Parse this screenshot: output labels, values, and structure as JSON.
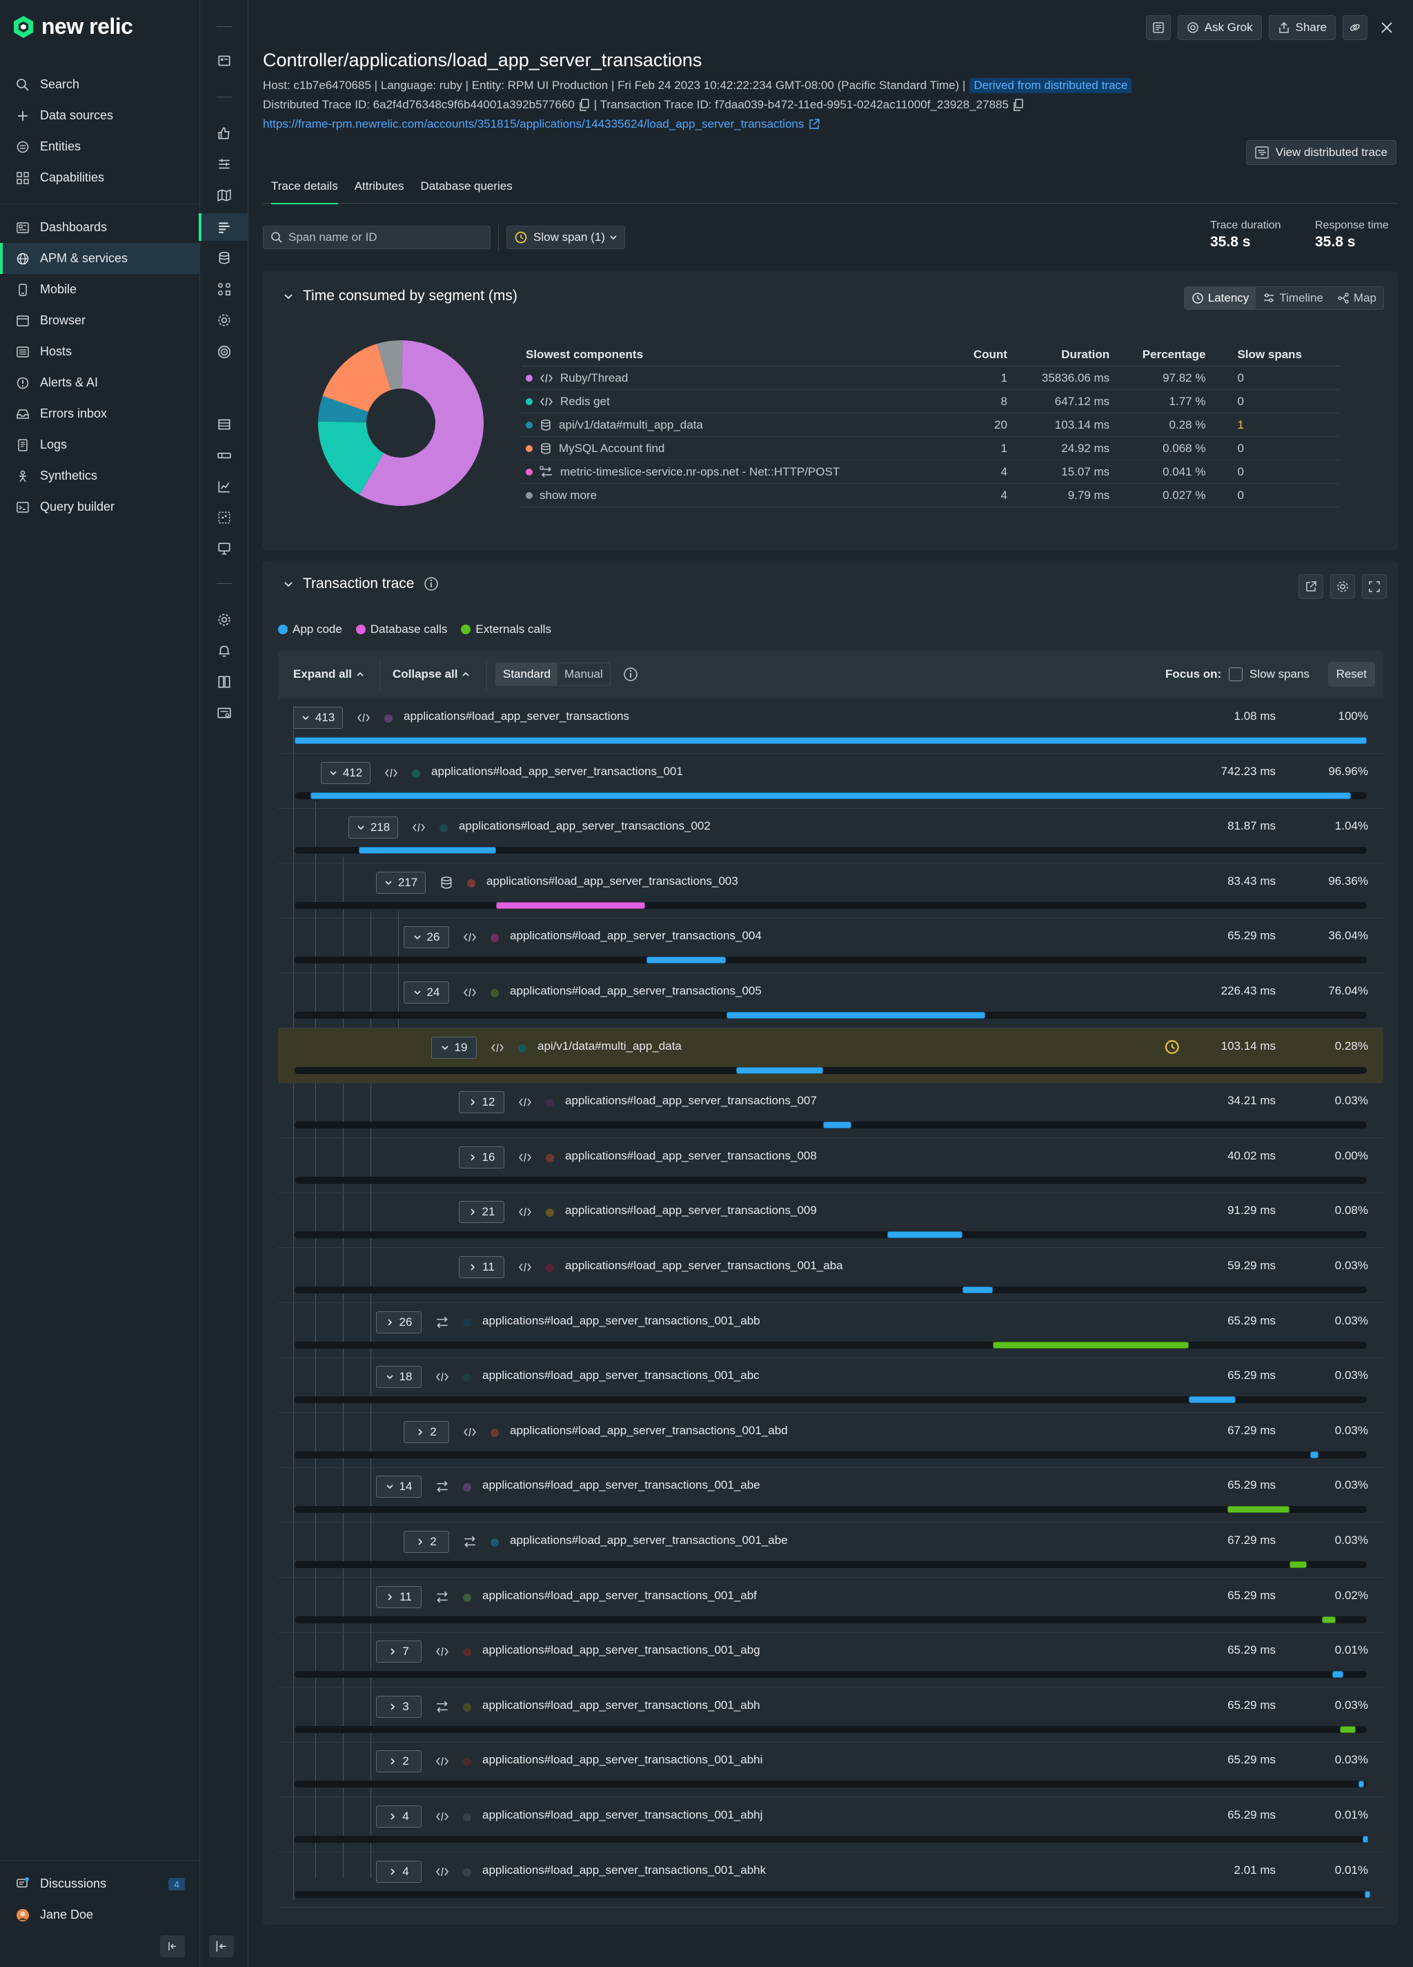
{
  "nav": {
    "brand": "new relic",
    "top_items": [
      {
        "label": "Search",
        "icon": "search-icon"
      },
      {
        "label": "Data sources",
        "icon": "plus-icon"
      },
      {
        "label": "Entities",
        "icon": "entities-icon"
      },
      {
        "label": "Capabilities",
        "icon": "grid-icon"
      }
    ],
    "items": [
      {
        "label": "Dashboards",
        "icon": "dashboard-icon"
      },
      {
        "label": "APM & services",
        "icon": "globe-icon",
        "active": true
      },
      {
        "label": "Mobile",
        "icon": "mobile-icon"
      },
      {
        "label": "Browser",
        "icon": "browser-icon"
      },
      {
        "label": "Hosts",
        "icon": "server-icon"
      },
      {
        "label": "Alerts & AI",
        "icon": "alert-icon"
      },
      {
        "label": "Errors inbox",
        "icon": "inbox-icon"
      },
      {
        "label": "Logs",
        "icon": "logs-icon"
      },
      {
        "label": "Synthetics",
        "icon": "synthetics-icon"
      },
      {
        "label": "Query builder",
        "icon": "terminal-icon"
      }
    ],
    "bottom": {
      "discussions": "Discussions",
      "discussions_count": "4",
      "user": "Jane Doe"
    }
  },
  "header": {
    "actions": {
      "ask": "Ask Grok",
      "share": "Share"
    },
    "title": "Controller/applications/load_app_server_transactions",
    "meta_line": "Host: c1b7e6470685 | Language: ruby | Entity: RPM UI Production | Fri Feb 24 2023 10:42:22:234 GMT-08:00 (Pacific Standard Time) |",
    "derived_badge": "Derived from distributed trace",
    "dist_trace": "Distributed Trace ID: 6a2f4d76348c9f6b44001a392b577660",
    "txn_trace": "| Transaction Trace ID: f7daa039-b472-11ed-9951-0242ac11000f_23928_27885",
    "url": "https://frame-rpm.newrelic.com/accounts/351815/applications/144335624/load_app_server_transactions",
    "view_dt": "View distributed trace"
  },
  "tabs": [
    "Trace details",
    "Attributes",
    "Database queries"
  ],
  "filters": {
    "search_placeholder": "Span name or ID",
    "slow_span": "Slow span (1)"
  },
  "stats": {
    "trace_duration_label": "Trace duration",
    "trace_duration": "35.8 s",
    "response_time_label": "Response time",
    "response_time": "35.8 s"
  },
  "segment_panel": {
    "title": "Time consumed by segment (ms)",
    "views": [
      "Latency",
      "Timeline",
      "Map"
    ],
    "columns": [
      "Slowest components",
      "Count",
      "Duration",
      "Percentage",
      "Slow spans"
    ],
    "rows": [
      {
        "name": "Ruby/Thread",
        "icon": "code-icon",
        "color": "#c97ee0",
        "count": "1",
        "duration": "35836.06 ms",
        "percentage": "97.82 %",
        "slow": "0"
      },
      {
        "name": "Redis get",
        "icon": "code-icon",
        "color": "#15c9b2",
        "count": "8",
        "duration": "647.12 ms",
        "percentage": "1.77 %",
        "slow": "0"
      },
      {
        "name": "api/v1/data#multi_app_data",
        "icon": "database-icon",
        "color": "#1b8aa8",
        "count": "20",
        "duration": "103.14 ms",
        "percentage": "0.28 %",
        "slow": "1"
      },
      {
        "name": "MySQL Account find",
        "icon": "database-icon",
        "color": "#ff8c5f",
        "count": "1",
        "duration": "24.92 ms",
        "percentage": "0.068 %",
        "slow": "0"
      },
      {
        "name": "metric-timeslice-service.nr-ops.net - Net::HTTP/POST",
        "icon": "external-icon",
        "color": "#f060c8",
        "count": "4",
        "duration": "15.07 ms",
        "percentage": "0.041 %",
        "slow": "0"
      },
      {
        "name": "show more",
        "icon": "",
        "color": "#8e9599",
        "count": "4",
        "duration": "9.79 ms",
        "percentage": "0.027 %",
        "slow": "0"
      }
    ],
    "pie_slices": [
      {
        "label": "Ruby/Thread",
        "value": 58,
        "color": "#c97ee0"
      },
      {
        "label": "Redis get",
        "value": 17,
        "color": "#15c9b2"
      },
      {
        "label": "api/v1/data#multi_app_data",
        "value": 5,
        "color": "#1b8aa8"
      },
      {
        "label": "MySQL Account find",
        "value": 15,
        "color": "#ff8c5f"
      },
      {
        "label": "show more",
        "value": 5,
        "color": "#8e9599"
      }
    ]
  },
  "trace_panel": {
    "title": "Transaction trace",
    "legend": [
      {
        "label": "App code",
        "color": "#2ea7f5"
      },
      {
        "label": "Database calls",
        "color": "#e060e0"
      },
      {
        "label": "Externals calls",
        "color": "#5cc11d"
      }
    ],
    "toolbar": {
      "expand": "Expand all",
      "collapse": "Collapse all",
      "standard": "Standard",
      "manual": "Manual",
      "focus": "Focus on:",
      "slow_spans": "Slow spans",
      "reset": "Reset"
    },
    "rows": [
      {
        "depth": 0,
        "count": "413",
        "expanded": true,
        "type": "code",
        "dot": "#5a3d6e",
        "name": "applications#load_app_server_transactions",
        "duration": "1.08 ms",
        "pct": "100%",
        "bar": [
          0,
          1.0
        ],
        "color": "#2ea7f5"
      },
      {
        "depth": 1,
        "count": "412",
        "expanded": true,
        "type": "code",
        "dot": "#1b5a4e",
        "name": "applications#load_app_server_transactions_001",
        "duration": "742.23 ms",
        "pct": "96.96%",
        "bar": [
          0.015,
          0.985
        ],
        "color": "#2ea7f5"
      },
      {
        "depth": 2,
        "count": "218",
        "expanded": true,
        "type": "code",
        "dot": "#1b4a50",
        "name": "applications#load_app_server_transactions_002",
        "duration": "81.87 ms",
        "pct": "1.04%",
        "bar": [
          0.06,
          0.188
        ],
        "color": "#2ea7f5"
      },
      {
        "depth": 3,
        "count": "217",
        "expanded": true,
        "type": "db",
        "dot": "#7a3a34",
        "name": "applications#load_app_server_transactions_003",
        "duration": "83.43 ms",
        "pct": "96.36%",
        "bar": [
          0.188,
          0.327
        ],
        "color": "#e060e0"
      },
      {
        "depth": 4,
        "count": "26",
        "expanded": true,
        "type": "code",
        "dot": "#6b3060",
        "name": "applications#load_app_server_transactions_004",
        "duration": "65.29 ms",
        "pct": "36.04%",
        "bar": [
          0.328,
          0.402
        ],
        "color": "#2ea7f5"
      },
      {
        "depth": 4,
        "count": "24",
        "expanded": true,
        "type": "code",
        "dot": "#3e5a2c",
        "name": "applications#load_app_server_transactions_005",
        "duration": "226.43 ms",
        "pct": "76.04%",
        "bar": [
          0.403,
          0.644
        ],
        "color": "#2ea7f5"
      },
      {
        "depth": 5,
        "count": "19",
        "expanded": true,
        "type": "code",
        "dot": "#145a5a",
        "name": "api/v1/data#multi_app_data",
        "duration": "103.14 ms",
        "pct": "0.28%",
        "bar": [
          0.412,
          0.493
        ],
        "color": "#2ea7f5",
        "slow": true
      },
      {
        "depth": 6,
        "count": "12",
        "expanded": false,
        "type": "code",
        "dot": "#3d2c48",
        "name": "applications#load_app_server_transactions_007",
        "duration": "34.21 ms",
        "pct": "0.03%",
        "bar": [
          0.493,
          0.519
        ],
        "color": "#2ea7f5"
      },
      {
        "depth": 6,
        "count": "16",
        "expanded": false,
        "type": "code",
        "dot": "#6a3a30",
        "name": "applications#load_app_server_transactions_008",
        "duration": "40.02 ms",
        "pct": "0.00%",
        "bar": null,
        "color": "#2ea7f5"
      },
      {
        "depth": 6,
        "count": "21",
        "expanded": false,
        "type": "code",
        "dot": "#6a5428",
        "name": "applications#load_app_server_transactions_009",
        "duration": "91.29 ms",
        "pct": "0.08%",
        "bar": [
          0.553,
          0.623
        ],
        "color": "#2ea7f5"
      },
      {
        "depth": 6,
        "count": "11",
        "expanded": false,
        "type": "code",
        "dot": "#5a2238",
        "name": "applications#load_app_server_transactions_001_aba",
        "duration": "59.29 ms",
        "pct": "0.03%",
        "bar": [
          0.623,
          0.651
        ],
        "color": "#2ea7f5"
      },
      {
        "depth": 3,
        "count": "26",
        "expanded": false,
        "type": "ext",
        "dot": "#1b3a4e",
        "name": "applications#load_app_server_transactions_001_abb",
        "duration": "65.29 ms",
        "pct": "0.03%",
        "bar": [
          0.651,
          0.834
        ],
        "color": "#5cc11d"
      },
      {
        "depth": 3,
        "count": "18",
        "expanded": true,
        "type": "code",
        "dot": "#1b3e3a",
        "name": "applications#load_app_server_transactions_001_abc",
        "duration": "65.29 ms",
        "pct": "0.03%",
        "bar": [
          0.834,
          0.878
        ],
        "color": "#2ea7f5"
      },
      {
        "depth": 4,
        "count": "2",
        "expanded": false,
        "type": "code",
        "dot": "#6a3a30",
        "name": "applications#load_app_server_transactions_001_abd",
        "duration": "67.29 ms",
        "pct": "0.03%",
        "bar": [
          0.947,
          0.955
        ],
        "color": "#2ea7f5"
      },
      {
        "depth": 3,
        "count": "14",
        "expanded": true,
        "type": "ext",
        "dot": "#5a3d6e",
        "name": "applications#load_app_server_transactions_001_abe",
        "duration": "65.29 ms",
        "pct": "0.03%",
        "bar": [
          0.87,
          0.928
        ],
        "color": "#5cc11d"
      },
      {
        "depth": 4,
        "count": "2",
        "expanded": false,
        "type": "ext",
        "dot": "#1b5a6e",
        "name": "applications#load_app_server_transactions_001_abe",
        "duration": "67.29 ms",
        "pct": "0.03%",
        "bar": [
          0.928,
          0.944
        ],
        "color": "#5cc11d"
      },
      {
        "depth": 3,
        "count": "11",
        "expanded": false,
        "type": "ext",
        "dot": "#3e5a3c",
        "name": "applications#load_app_server_transactions_001_abf",
        "duration": "65.29 ms",
        "pct": "0.02%",
        "bar": [
          0.958,
          0.971
        ],
        "color": "#5cc11d"
      },
      {
        "depth": 3,
        "count": "7",
        "expanded": false,
        "type": "code",
        "dot": "#5a2a2a",
        "name": "applications#load_app_server_transactions_001_abg",
        "duration": "65.29 ms",
        "pct": "0.01%",
        "bar": [
          0.968,
          0.978
        ],
        "color": "#2ea7f5"
      },
      {
        "depth": 3,
        "count": "3",
        "expanded": false,
        "type": "ext",
        "dot": "#4a4a2a",
        "name": "applications#load_app_server_transactions_001_abh",
        "duration": "65.29 ms",
        "pct": "0.03%",
        "bar": [
          0.975,
          0.99
        ],
        "color": "#5cc11d"
      },
      {
        "depth": 3,
        "count": "2",
        "expanded": false,
        "type": "code",
        "dot": "#4a2a2a",
        "name": "applications#load_app_server_transactions_001_abhi",
        "duration": "65.29 ms",
        "pct": "0.03%",
        "bar": [
          0.992,
          0.996
        ],
        "color": "#2ea7f5"
      },
      {
        "depth": 3,
        "count": "4",
        "expanded": false,
        "type": "code",
        "dot": "#3a4248",
        "name": "applications#load_app_server_transactions_001_abhj",
        "duration": "65.29 ms",
        "pct": "0.01%",
        "bar": [
          0.996,
          1.0
        ],
        "color": "#2ea7f5"
      },
      {
        "depth": 3,
        "count": "4",
        "expanded": false,
        "type": "code",
        "dot": "#3a4248",
        "name": "applications#load_app_server_transactions_001_abhk",
        "duration": "2.01 ms",
        "pct": "0.01%",
        "bar": [
          0.998,
          1.0
        ],
        "color": "#2ea7f5"
      }
    ]
  }
}
